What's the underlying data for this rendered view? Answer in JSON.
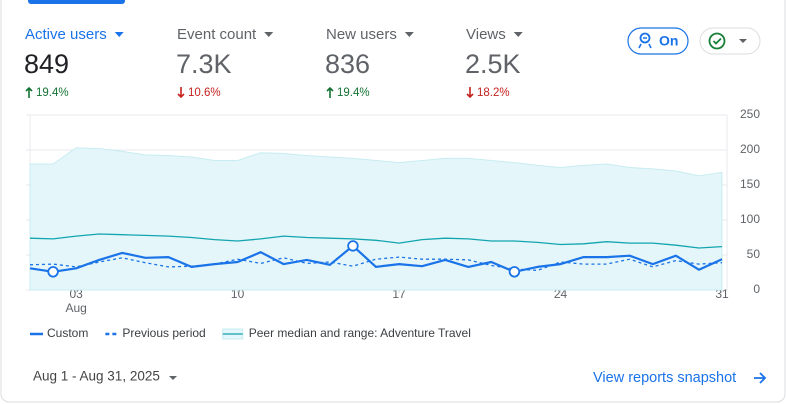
{
  "metrics": [
    {
      "label": "Active users",
      "value": "849",
      "change": "19.4%",
      "direction": "up",
      "selected": true
    },
    {
      "label": "Event count",
      "value": "7.3K",
      "change": "10.6%",
      "direction": "down",
      "selected": false
    },
    {
      "label": "New users",
      "value": "836",
      "change": "19.4%",
      "direction": "up",
      "selected": false
    },
    {
      "label": "Views",
      "value": "2.5K",
      "change": "18.2%",
      "direction": "down",
      "selected": false
    }
  ],
  "toggle": {
    "label": "On"
  },
  "chart_data": {
    "type": "line",
    "x": [
      1,
      2,
      3,
      4,
      5,
      6,
      7,
      8,
      9,
      10,
      11,
      12,
      13,
      14,
      15,
      16,
      17,
      18,
      19,
      20,
      21,
      22,
      23,
      24,
      25,
      26,
      27,
      28,
      29,
      30,
      31
    ],
    "xlim": [
      1,
      31
    ],
    "xticks": [
      {
        "value": 3,
        "label": "03"
      },
      10,
      17,
      24,
      31
    ],
    "x_sublabel": "Aug",
    "ylim": [
      0,
      250
    ],
    "yticks": [
      0,
      50,
      100,
      150,
      200,
      250
    ],
    "grid": true,
    "series": [
      {
        "name": "Custom",
        "color": "#1a73e8",
        "style": "solid",
        "values": [
          31,
          26,
          31,
          43,
          53,
          46,
          47,
          33,
          37,
          40,
          54,
          37,
          43,
          36,
          63,
          33,
          37,
          34,
          43,
          33,
          40,
          26,
          33,
          37,
          47,
          47,
          49,
          37,
          49,
          29,
          44
        ],
        "highlight_days": [
          2,
          15,
          22
        ]
      },
      {
        "name": "Previous period",
        "color": "#1a73e8",
        "style": "dashed",
        "values": [
          36,
          37,
          33,
          40,
          46,
          39,
          33,
          34,
          37,
          44,
          38,
          46,
          38,
          40,
          34,
          44,
          47,
          44,
          44,
          43,
          35,
          30,
          28,
          40,
          37,
          37,
          44,
          33,
          42,
          37,
          39
        ]
      },
      {
        "name": "Peer median and range: Adventure Travel",
        "color": "#12a4af",
        "style": "band",
        "values": [
          74,
          73,
          77,
          80,
          79,
          78,
          77,
          75,
          72,
          70,
          73,
          77,
          75,
          74,
          73,
          71,
          67,
          72,
          74,
          73,
          70,
          70,
          68,
          65,
          66,
          69,
          67,
          67,
          64,
          60,
          62
        ],
        "range_upper": [
          180,
          180,
          203,
          202,
          198,
          193,
          192,
          190,
          185,
          185,
          196,
          195,
          192,
          190,
          188,
          185,
          182,
          185,
          188,
          188,
          185,
          182,
          178,
          175,
          178,
          180,
          175,
          173,
          170,
          163,
          168
        ]
      }
    ]
  },
  "footer": {
    "date_range": "Aug 1 - Aug 31, 2025",
    "link": "View reports snapshot"
  }
}
